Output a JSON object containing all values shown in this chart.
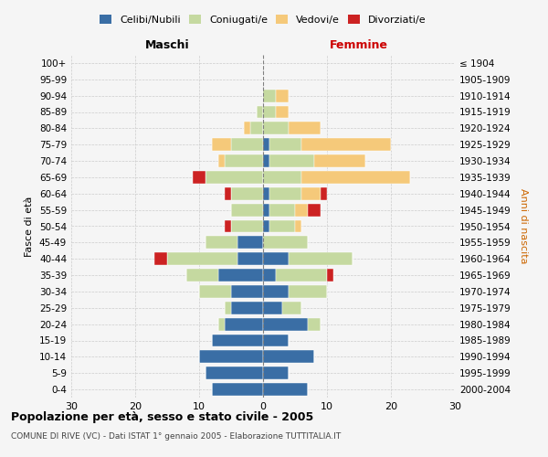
{
  "age_groups": [
    "0-4",
    "5-9",
    "10-14",
    "15-19",
    "20-24",
    "25-29",
    "30-34",
    "35-39",
    "40-44",
    "45-49",
    "50-54",
    "55-59",
    "60-64",
    "65-69",
    "70-74",
    "75-79",
    "80-84",
    "85-89",
    "90-94",
    "95-99",
    "100+"
  ],
  "birth_years": [
    "2000-2004",
    "1995-1999",
    "1990-1994",
    "1985-1989",
    "1980-1984",
    "1975-1979",
    "1970-1974",
    "1965-1969",
    "1960-1964",
    "1955-1959",
    "1950-1954",
    "1945-1949",
    "1940-1944",
    "1935-1939",
    "1930-1934",
    "1925-1929",
    "1920-1924",
    "1915-1919",
    "1910-1914",
    "1905-1909",
    "≤ 1904"
  ],
  "males": {
    "celibi": [
      8,
      9,
      10,
      8,
      6,
      5,
      5,
      7,
      4,
      4,
      0,
      0,
      0,
      0,
      0,
      0,
      0,
      0,
      0,
      0,
      0
    ],
    "coniugati": [
      0,
      0,
      0,
      0,
      1,
      1,
      5,
      5,
      11,
      5,
      5,
      5,
      5,
      9,
      6,
      5,
      2,
      1,
      0,
      0,
      0
    ],
    "vedovi": [
      0,
      0,
      0,
      0,
      0,
      0,
      0,
      0,
      0,
      0,
      0,
      0,
      0,
      0,
      1,
      3,
      1,
      0,
      0,
      0,
      0
    ],
    "divorziati": [
      0,
      0,
      0,
      0,
      0,
      0,
      0,
      0,
      2,
      0,
      1,
      0,
      1,
      2,
      0,
      0,
      0,
      0,
      0,
      0,
      0
    ]
  },
  "females": {
    "nubili": [
      7,
      4,
      8,
      4,
      7,
      3,
      4,
      2,
      4,
      0,
      1,
      1,
      1,
      0,
      1,
      1,
      0,
      0,
      0,
      0,
      0
    ],
    "coniugate": [
      0,
      0,
      0,
      0,
      2,
      3,
      6,
      8,
      10,
      7,
      4,
      4,
      5,
      6,
      7,
      5,
      4,
      2,
      2,
      0,
      0
    ],
    "vedove": [
      0,
      0,
      0,
      0,
      0,
      0,
      0,
      0,
      0,
      0,
      1,
      2,
      3,
      17,
      8,
      14,
      5,
      2,
      2,
      0,
      0
    ],
    "divorziate": [
      0,
      0,
      0,
      0,
      0,
      0,
      0,
      1,
      0,
      0,
      0,
      2,
      1,
      0,
      0,
      0,
      0,
      0,
      0,
      0,
      0
    ]
  },
  "colors": {
    "celibi": "#3a6ea5",
    "coniugati": "#c5d9a0",
    "vedovi": "#f5c97a",
    "divorziati": "#cc2222"
  },
  "title": "Popolazione per età, sesso e stato civile - 2005",
  "subtitle": "COMUNE DI RIVE (VC) - Dati ISTAT 1° gennaio 2005 - Elaborazione TUTTITALIA.IT",
  "xlabel_left": "Maschi",
  "xlabel_right": "Femmine",
  "ylabel_left": "Fasce di età",
  "ylabel_right": "Anni di nascita",
  "xlim": 30,
  "bg_color": "#f5f5f5",
  "grid_color": "#cccccc"
}
